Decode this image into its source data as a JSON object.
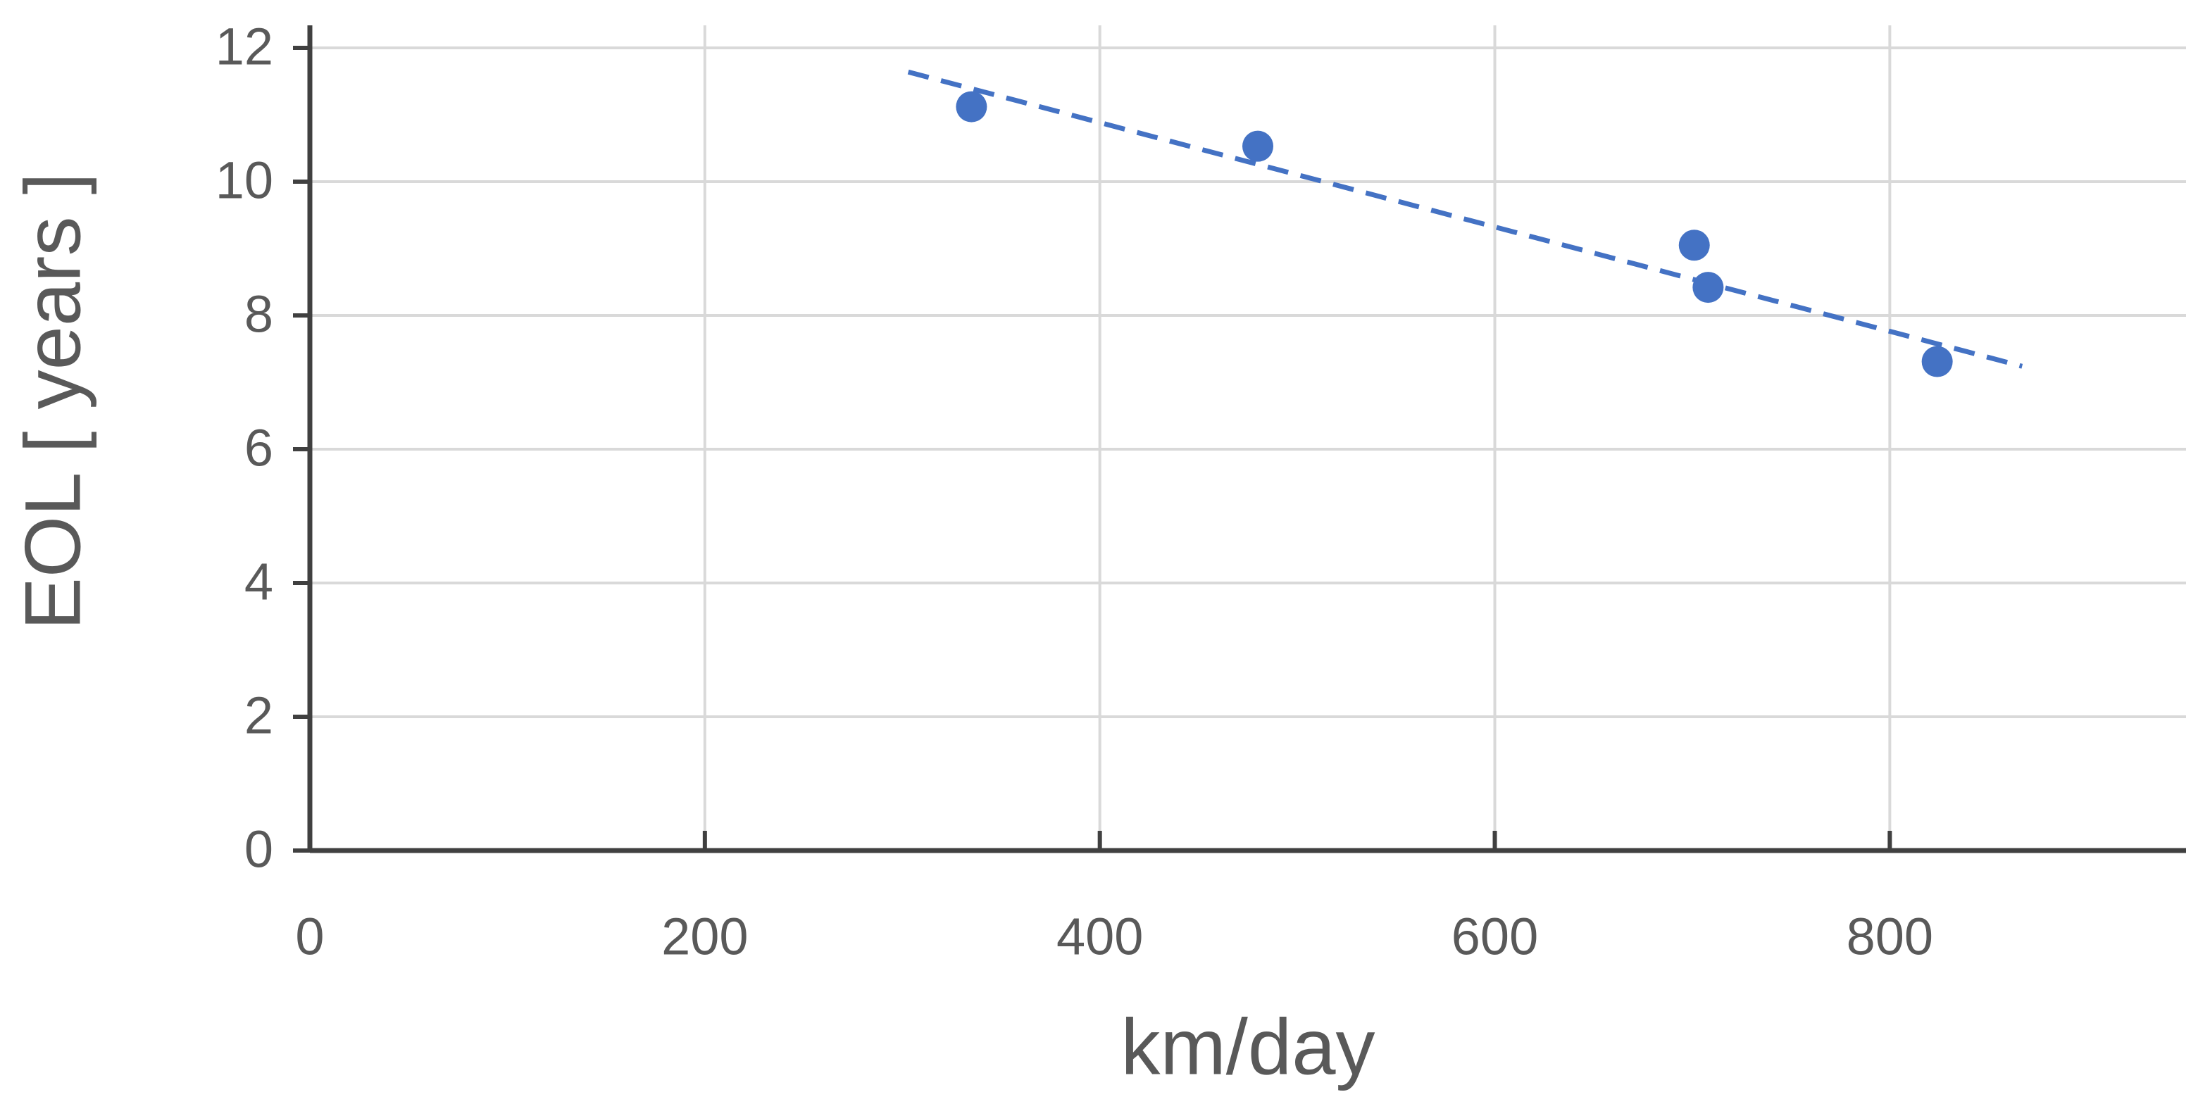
{
  "chart_data": {
    "type": "scatter",
    "x_label": "km/day",
    "y_label": "EOL [ years ]",
    "x": [
      335,
      480,
      701,
      708,
      824
    ],
    "values": [
      11.12,
      10.53,
      9.05,
      8.42,
      7.31
    ],
    "color": "#4472c4",
    "trendline": {
      "x": [
        303,
        867
      ],
      "y": [
        11.64,
        7.24
      ],
      "color": "#4472c4",
      "dashed": true
    },
    "xlim": [
      0,
      950
    ],
    "ylim": [
      0,
      12
    ],
    "xticks": [
      0,
      200,
      400,
      600,
      800
    ],
    "yticks": [
      0,
      2,
      4,
      6,
      8,
      10,
      12
    ],
    "grid": true
  }
}
